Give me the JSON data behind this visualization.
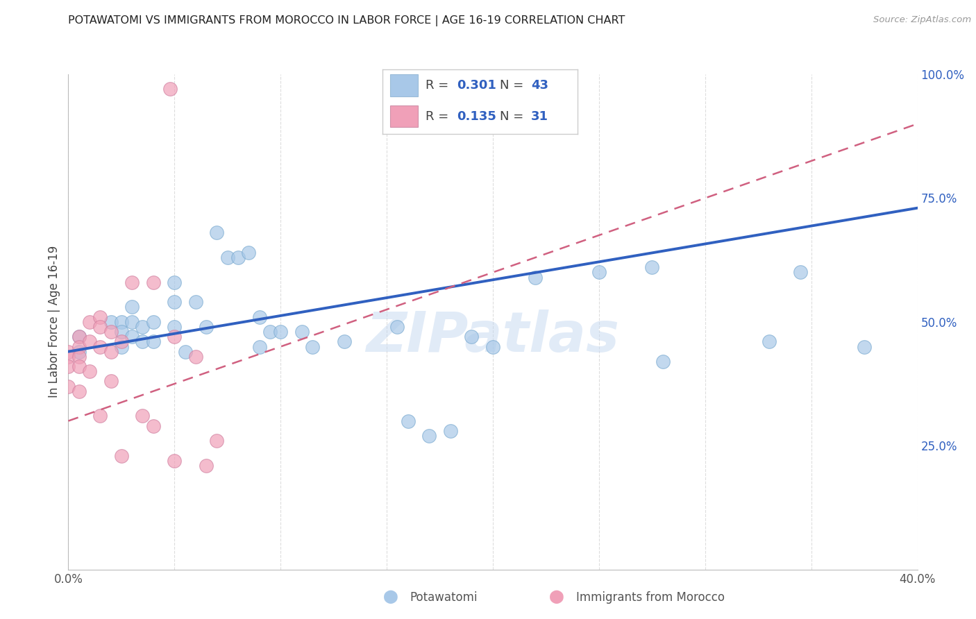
{
  "title": "POTAWATOMI VS IMMIGRANTS FROM MOROCCO IN LABOR FORCE | AGE 16-19 CORRELATION CHART",
  "source": "Source: ZipAtlas.com",
  "ylabel": "In Labor Force | Age 16-19",
  "xlim": [
    0.0,
    0.4
  ],
  "ylim": [
    0.0,
    1.0
  ],
  "x_ticks": [
    0.0,
    0.05,
    0.1,
    0.15,
    0.2,
    0.25,
    0.3,
    0.35,
    0.4
  ],
  "y_ticks_right": [
    0.0,
    0.25,
    0.5,
    0.75,
    1.0
  ],
  "y_tick_labels_right": [
    "",
    "25.0%",
    "50.0%",
    "75.0%",
    "100.0%"
  ],
  "blue_color": "#A8C8E8",
  "pink_color": "#F0A0B8",
  "blue_line_color": "#3060C0",
  "pink_line_color": "#D06080",
  "R_blue": 0.301,
  "N_blue": 43,
  "R_pink": 0.135,
  "N_pink": 31,
  "blue_scatter_x": [
    0.005,
    0.005,
    0.02,
    0.025,
    0.025,
    0.025,
    0.03,
    0.03,
    0.03,
    0.035,
    0.035,
    0.04,
    0.04,
    0.05,
    0.05,
    0.05,
    0.055,
    0.06,
    0.065,
    0.07,
    0.075,
    0.08,
    0.085,
    0.09,
    0.09,
    0.095,
    0.1,
    0.11,
    0.115,
    0.13,
    0.155,
    0.16,
    0.17,
    0.18,
    0.19,
    0.2,
    0.22,
    0.25,
    0.275,
    0.28,
    0.33,
    0.345,
    0.375
  ],
  "blue_scatter_y": [
    0.47,
    0.44,
    0.5,
    0.5,
    0.48,
    0.45,
    0.53,
    0.5,
    0.47,
    0.49,
    0.46,
    0.5,
    0.46,
    0.58,
    0.54,
    0.49,
    0.44,
    0.54,
    0.49,
    0.68,
    0.63,
    0.63,
    0.64,
    0.51,
    0.45,
    0.48,
    0.48,
    0.48,
    0.45,
    0.46,
    0.49,
    0.3,
    0.27,
    0.28,
    0.47,
    0.45,
    0.59,
    0.6,
    0.61,
    0.42,
    0.46,
    0.6,
    0.45
  ],
  "pink_scatter_x": [
    0.0,
    0.0,
    0.0,
    0.0,
    0.005,
    0.005,
    0.005,
    0.005,
    0.005,
    0.01,
    0.01,
    0.01,
    0.015,
    0.015,
    0.015,
    0.015,
    0.02,
    0.02,
    0.02,
    0.025,
    0.025,
    0.03,
    0.035,
    0.04,
    0.04,
    0.05,
    0.05,
    0.06,
    0.065,
    0.07,
    0.048
  ],
  "pink_scatter_y": [
    0.44,
    0.43,
    0.41,
    0.37,
    0.47,
    0.45,
    0.43,
    0.41,
    0.36,
    0.5,
    0.46,
    0.4,
    0.51,
    0.49,
    0.45,
    0.31,
    0.48,
    0.44,
    0.38,
    0.46,
    0.23,
    0.58,
    0.31,
    0.58,
    0.29,
    0.47,
    0.22,
    0.43,
    0.21,
    0.26,
    0.97
  ],
  "watermark_text": "ZIPatlas",
  "background_color": "#FFFFFF",
  "grid_color": "#DDDDDD",
  "legend_frame_color": "#CCCCCC",
  "text_color_dark": "#444444",
  "text_color_blue": "#3060C0"
}
